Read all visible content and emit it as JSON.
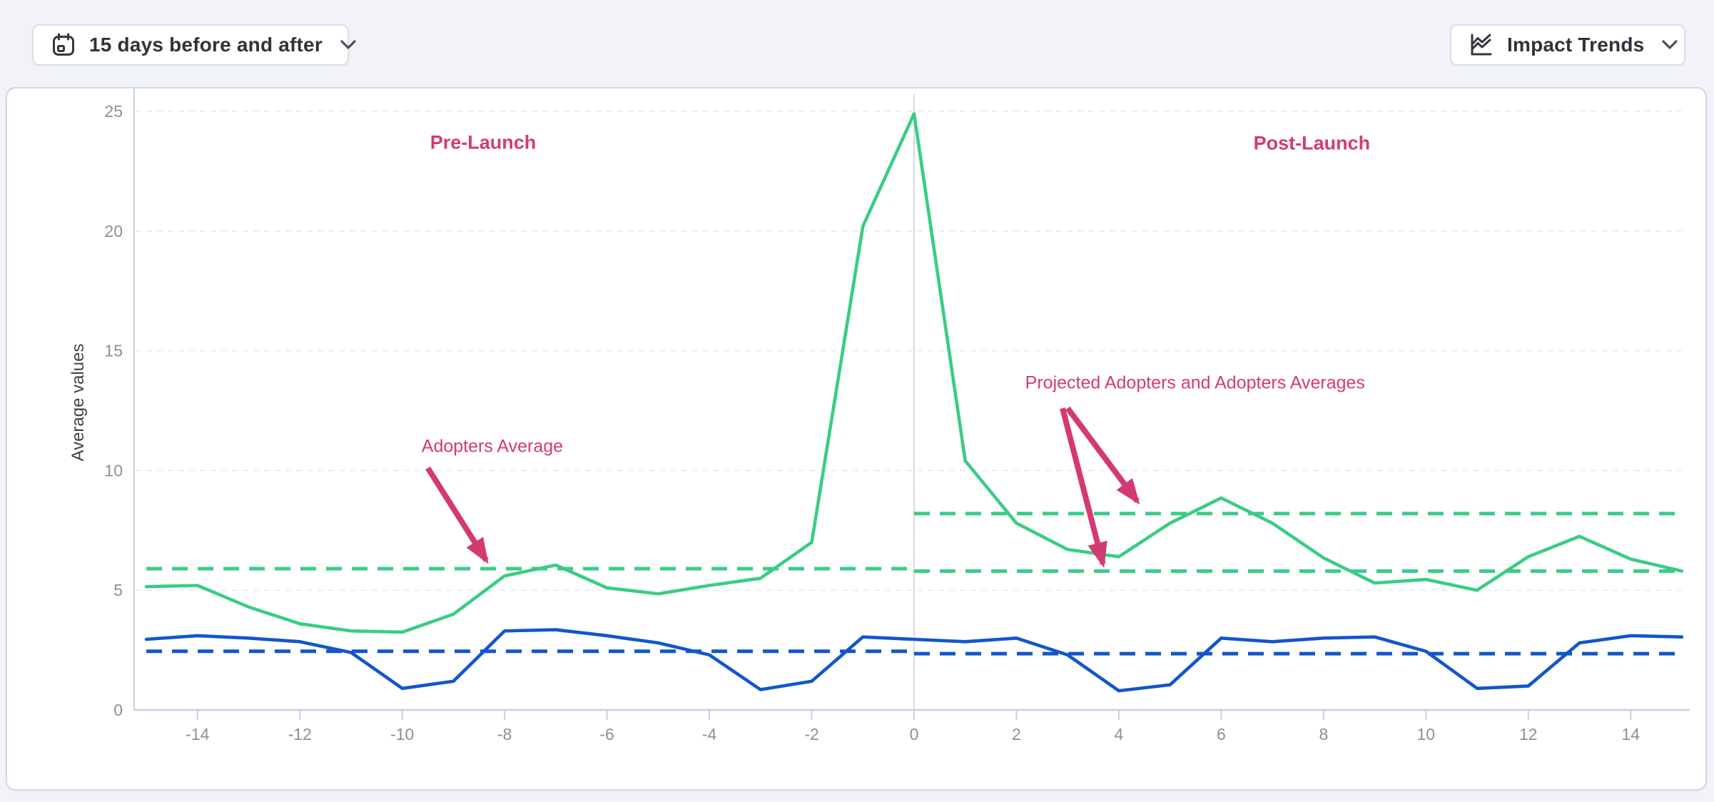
{
  "toolbar": {
    "period_selector": {
      "label": "15 days before and after",
      "icon": "calendar-icon",
      "chevron": "chevron-down-icon"
    },
    "trends_selector": {
      "label": "Impact Trends",
      "icon": "line-chart-icon",
      "chevron": "chevron-down-icon"
    }
  },
  "colors": {
    "adopters_green": "#3acc85",
    "secondary_blue": "#1256cb",
    "annotation_pink": "#d43a72",
    "gridline": "#e8eaf0",
    "axis_line": "#c6d0e2",
    "tick_text": "#8a8f99",
    "divider": "#d8dbe2"
  },
  "chart_data": {
    "type": "line",
    "title": "",
    "xlabel": "",
    "ylabel": "Average values",
    "xlim": [
      -15,
      15
    ],
    "ylim": [
      0,
      26
    ],
    "xticks": [
      -14,
      -12,
      -10,
      -8,
      -6,
      -4,
      -2,
      0,
      2,
      4,
      6,
      8,
      10,
      12,
      14
    ],
    "yticks": [
      0,
      5,
      10,
      15,
      20,
      25
    ],
    "grid": "horizontal-dashed",
    "launch_divider_x": 0,
    "x": [
      -15,
      -14,
      -13,
      -12,
      -11,
      -10,
      -9,
      -8,
      -7,
      -6,
      -5,
      -4,
      -3,
      -2,
      -1,
      0,
      1,
      2,
      3,
      4,
      5,
      6,
      7,
      8,
      9,
      10,
      11,
      12,
      13,
      14,
      15
    ],
    "series": [
      {
        "id": "adopters",
        "name": "Adopters",
        "style": "solid",
        "color": "#3acc85",
        "values": [
          5.15,
          5.2,
          4.3,
          3.6,
          3.3,
          3.25,
          4.0,
          5.6,
          6.05,
          5.1,
          4.85,
          5.2,
          5.5,
          7.0,
          20.2,
          24.9,
          10.4,
          7.8,
          6.7,
          6.4,
          7.8,
          8.85,
          7.8,
          6.35,
          5.3,
          5.45,
          5.0,
          6.4,
          7.25,
          6.3,
          5.8
        ]
      },
      {
        "id": "projected-adopters",
        "name": "Projected Adopters",
        "style": "solid",
        "color": "#1256cb",
        "values": [
          2.95,
          3.1,
          3.0,
          2.85,
          2.4,
          0.9,
          1.2,
          3.3,
          3.35,
          3.1,
          2.8,
          2.3,
          0.85,
          1.2,
          3.05,
          2.95,
          2.85,
          3.0,
          2.3,
          0.8,
          1.05,
          3.0,
          2.85,
          3.0,
          3.05,
          2.45,
          0.9,
          1.0,
          2.8,
          3.1,
          3.05
        ]
      }
    ],
    "reference_lines": [
      {
        "id": "pre-launch-adopters-average",
        "value": 5.9,
        "x_range": [
          -15,
          0
        ],
        "color": "#3acc85",
        "style": "dashed"
      },
      {
        "id": "post-launch-adopters-average",
        "value": 8.2,
        "x_range": [
          0,
          15
        ],
        "color": "#3acc85",
        "style": "dashed"
      },
      {
        "id": "post-launch-projected-adopters-average",
        "value": 5.8,
        "x_range": [
          0,
          15
        ],
        "color": "#3acc85",
        "style": "dashed"
      },
      {
        "id": "pre-launch-blue-average",
        "value": 2.45,
        "x_range": [
          -15,
          0
        ],
        "color": "#1256cb",
        "style": "dashed"
      },
      {
        "id": "post-launch-blue-average",
        "value": 2.35,
        "x_range": [
          0,
          15
        ],
        "color": "#1256cb",
        "style": "dashed"
      }
    ],
    "annotations": [
      {
        "id": "pre-launch-label",
        "text": "Pre-Launch",
        "x": -8.42,
        "y": 23.7,
        "bold": true,
        "arrows": []
      },
      {
        "id": "post-launch-label",
        "text": "Post-Launch",
        "x": 7.77,
        "y": 23.65,
        "bold": true,
        "arrows": []
      },
      {
        "id": "adopters-average-label",
        "text": "Adopters Average",
        "x": -8.24,
        "y": 11.0,
        "bold": false,
        "arrows": [
          {
            "from": [
              -9.5,
              10.1
            ],
            "to": [
              -8.36,
              6.25
            ]
          }
        ]
      },
      {
        "id": "projected-and-adopters-averages-label",
        "text": "Projected Adopters and Adopters Averages",
        "x": 5.49,
        "y": 13.65,
        "bold": false,
        "arrows": [
          {
            "from": [
              2.9,
              12.6
            ],
            "to": [
              3.69,
              6.1
            ]
          },
          {
            "from": [
              3.0,
              12.6
            ],
            "to": [
              4.36,
              8.72
            ]
          }
        ]
      }
    ]
  }
}
